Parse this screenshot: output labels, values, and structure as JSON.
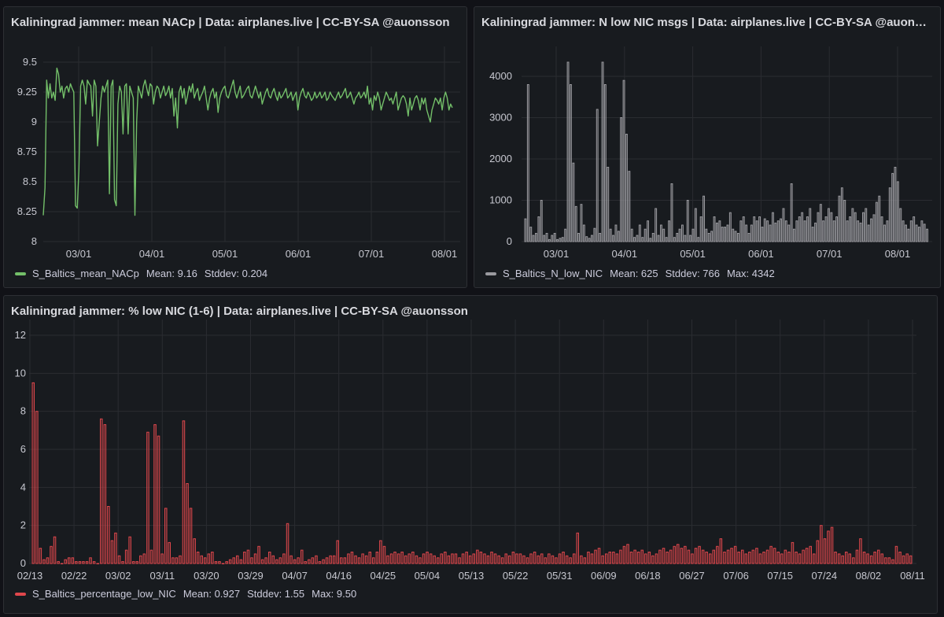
{
  "panels": [
    {
      "title": "Kaliningrad jammer: mean NACp | Data: airplanes.live | CC-BY-SA @auonsson",
      "legend": {
        "name": "S_Baltics_mean_NACp",
        "stats": [
          "Mean: 9.16",
          "Stddev: 0.204"
        ],
        "color": "#73bf69"
      }
    },
    {
      "title": "Kaliningrad jammer: N low NIC msgs | Data: airplanes.live | CC-BY-SA @auonsson",
      "legend": {
        "name": "S_Baltics_N_low_NIC",
        "stats": [
          "Mean: 625",
          "Stddev: 766",
          "Max: 4342"
        ],
        "color": "#9a9a9f"
      }
    },
    {
      "title": "Kaliningrad jammer: % low NIC (1-6) | Data: airplanes.live | CC-BY-SA @auonsson",
      "legend": {
        "name": "S_Baltics_percentage_low_NIC",
        "stats": [
          "Mean: 0.927",
          "Stddev: 1.55",
          "Max: 9.50"
        ],
        "color": "#e0474c"
      }
    }
  ],
  "chart_data": [
    {
      "type": "line",
      "series": [
        {
          "name": "S_Baltics_mean_NACp",
          "color": "#73bf69",
          "values": [
            8.22,
            8.45,
            9.35,
            9.2,
            9.32,
            9.2,
            9.25,
            9.18,
            9.45,
            9.4,
            9.25,
            9.3,
            9.2,
            9.28,
            9.3,
            9.25,
            9.32,
            9.28,
            9.25,
            8.3,
            8.28,
            8.6,
            9.3,
            9.35,
            9.3,
            9.15,
            9.35,
            9.32,
            9.3,
            9.05,
            9.35,
            9.3,
            8.8,
            9.0,
            9.2,
            9.3,
            9.25,
            9.3,
            9.35,
            8.4,
            9.3,
            9.35,
            8.35,
            8.3,
            9.15,
            9.3,
            9.25,
            8.9,
            9.3,
            9.32,
            8.9,
            9.3,
            9.25,
            9.2,
            8.22,
            9.0,
            9.3,
            9.25,
            9.2,
            9.3,
            9.35,
            9.28,
            9.22,
            9.32,
            9.3,
            9.15,
            9.25,
            9.3,
            9.28,
            9.2,
            9.25,
            9.3,
            9.22,
            9.25,
            9.3,
            9.2,
            9.28,
            9.05,
            9.2,
            8.95,
            9.25,
            9.3,
            9.2,
            9.28,
            9.15,
            9.22,
            9.3,
            9.25,
            9.32,
            9.2,
            9.25,
            9.28,
            9.18,
            9.22,
            9.25,
            9.3,
            9.2,
            9.1,
            9.2,
            9.25,
            9.28,
            9.2,
            9.25,
            9.08,
            9.2,
            9.25,
            9.28,
            9.3,
            9.22,
            9.2,
            9.25,
            9.3,
            9.35,
            9.25,
            9.2,
            9.25,
            9.3,
            9.2,
            9.22,
            9.25,
            9.28,
            9.3,
            9.22,
            9.2,
            9.25,
            9.3,
            9.25,
            9.2,
            9.25,
            9.15,
            9.2,
            9.25,
            9.28,
            9.22,
            9.2,
            9.25,
            9.28,
            9.22,
            9.18,
            9.25,
            9.2,
            9.22,
            9.25,
            9.28,
            9.2,
            9.22,
            9.25,
            9.18,
            9.22,
            9.25,
            9.1,
            9.2,
            9.25,
            9.28,
            9.22,
            9.2,
            9.25,
            9.22,
            9.18,
            9.2,
            9.25,
            9.2,
            9.22,
            9.25,
            9.2,
            9.22,
            9.25,
            9.18,
            9.2,
            9.25,
            9.22,
            9.2,
            9.18,
            9.22,
            9.25,
            9.2,
            9.22,
            9.25,
            9.28,
            9.2,
            9.22,
            9.25,
            9.2,
            9.15,
            9.2,
            9.22,
            9.25,
            9.2,
            9.22,
            9.25,
            9.2,
            9.3,
            9.15,
            9.2,
            9.1,
            9.22,
            9.18,
            9.25,
            9.2,
            9.1,
            9.15,
            9.2,
            9.25,
            9.22,
            9.18,
            9.2,
            9.15,
            9.2,
            9.25,
            9.1,
            9.15,
            9.2,
            9.22,
            9.2,
            9.15,
            9.05,
            9.2,
            9.1,
            9.15,
            9.2,
            9.22,
            9.18,
            9.1,
            9.2,
            9.15,
            9.2,
            9.1,
            9.05,
            9.0,
            9.1,
            9.15,
            9.2,
            9.18,
            9.15,
            9.2,
            9.1,
            9.2,
            9.25,
            9.2,
            9.1,
            9.15,
            9.12
          ]
        }
      ],
      "xticks": [
        "03/01",
        "04/01",
        "05/01",
        "06/01",
        "07/01",
        "08/01"
      ],
      "yticks": [
        "8",
        "8.25",
        "8.5",
        "8.75",
        "9",
        "9.25",
        "9.5"
      ],
      "ylim": [
        8,
        9.5
      ]
    },
    {
      "type": "bar",
      "series": [
        {
          "name": "S_Baltics_N_low_NIC",
          "color": "#9a9a9f",
          "values": [
            550,
            3800,
            350,
            150,
            200,
            600,
            1000,
            150,
            200,
            50,
            150,
            200,
            50,
            80,
            100,
            300,
            4342,
            3800,
            1900,
            850,
            200,
            900,
            400,
            120,
            80,
            150,
            320,
            3200,
            200,
            4342,
            3800,
            1800,
            300,
            150,
            400,
            250,
            3000,
            3900,
            2600,
            1700,
            300,
            100,
            150,
            400,
            100,
            300,
            500,
            80,
            200,
            800,
            150,
            400,
            300,
            100,
            500,
            1400,
            100,
            200,
            300,
            400,
            150,
            1000,
            150,
            300,
            800,
            100,
            600,
            1100,
            300,
            200,
            250,
            600,
            450,
            500,
            350,
            350,
            400,
            700,
            300,
            250,
            200,
            500,
            600,
            400,
            200,
            400,
            600,
            500,
            600,
            350,
            550,
            500,
            400,
            700,
            450,
            500,
            550,
            800,
            500,
            400,
            1400,
            300,
            500,
            600,
            700,
            500,
            600,
            800,
            350,
            450,
            700,
            900,
            500,
            600,
            800,
            700,
            500,
            600,
            1100,
            1300,
            1000,
            500,
            600,
            800,
            700,
            500,
            450,
            700,
            800,
            400,
            550,
            650,
            950,
            1100,
            600,
            400,
            500,
            1300,
            1650,
            1800,
            1450,
            800,
            500,
            400,
            300,
            500,
            600,
            400,
            350,
            500,
            420,
            300
          ]
        }
      ],
      "xticks": [
        "03/01",
        "04/01",
        "05/01",
        "06/01",
        "07/01",
        "08/01"
      ],
      "yticks": [
        "0",
        "1000",
        "2000",
        "3000",
        "4000"
      ],
      "ylim": [
        0,
        4342
      ]
    },
    {
      "type": "bar",
      "series": [
        {
          "name": "S_Baltics_percentage_low_NIC",
          "color": "#e0474c",
          "values": [
            9.5,
            8.0,
            0.8,
            0.2,
            0.3,
            0.9,
            1.4,
            0.1,
            0.0,
            0.2,
            0.3,
            0.3,
            0.1,
            0.1,
            0.1,
            0.1,
            0.3,
            0.1,
            0.0,
            7.6,
            7.3,
            3.0,
            1.2,
            1.6,
            0.4,
            0.1,
            0.7,
            1.4,
            0.1,
            0.1,
            0.4,
            0.5,
            6.9,
            0.7,
            7.3,
            6.7,
            0.5,
            2.9,
            1.1,
            0.3,
            0.3,
            0.4,
            7.5,
            4.2,
            2.9,
            1.3,
            0.6,
            0.4,
            0.3,
            0.5,
            0.6,
            0.1,
            0.1,
            0.0,
            0.1,
            0.2,
            0.3,
            0.4,
            0.2,
            0.6,
            0.7,
            0.3,
            0.5,
            0.9,
            0.2,
            0.3,
            0.6,
            0.4,
            0.2,
            0.3,
            0.5,
            2.1,
            0.4,
            0.2,
            0.3,
            0.7,
            0.1,
            0.2,
            0.3,
            0.4,
            0.1,
            0.2,
            0.3,
            0.4,
            0.4,
            1.2,
            0.3,
            0.3,
            0.5,
            0.6,
            0.4,
            0.3,
            0.5,
            0.4,
            0.6,
            0.3,
            0.6,
            1.2,
            0.9,
            0.4,
            0.5,
            0.6,
            0.5,
            0.6,
            0.4,
            0.5,
            0.6,
            0.4,
            0.3,
            0.5,
            0.6,
            0.5,
            0.4,
            0.3,
            0.5,
            0.6,
            0.4,
            0.5,
            0.5,
            0.3,
            0.5,
            0.6,
            0.4,
            0.5,
            0.7,
            0.6,
            0.5,
            0.4,
            0.6,
            0.5,
            0.4,
            0.3,
            0.5,
            0.4,
            0.6,
            0.5,
            0.5,
            0.4,
            0.3,
            0.5,
            0.6,
            0.4,
            0.5,
            0.3,
            0.5,
            0.4,
            0.3,
            0.5,
            0.6,
            0.4,
            0.3,
            0.5,
            1.6,
            0.4,
            0.3,
            0.6,
            0.5,
            0.7,
            0.8,
            0.4,
            0.5,
            0.6,
            0.6,
            0.5,
            0.7,
            0.9,
            1.0,
            0.6,
            0.7,
            0.6,
            0.7,
            0.5,
            0.6,
            0.4,
            0.5,
            0.7,
            0.8,
            0.6,
            0.7,
            0.9,
            1.0,
            0.8,
            0.9,
            0.7,
            0.5,
            0.8,
            0.9,
            0.7,
            0.6,
            0.5,
            0.7,
            0.9,
            1.3,
            0.6,
            0.7,
            0.8,
            0.9,
            0.6,
            0.7,
            0.5,
            0.6,
            0.7,
            0.8,
            0.5,
            0.6,
            0.7,
            0.9,
            0.8,
            0.6,
            0.5,
            0.7,
            0.6,
            1.1,
            0.6,
            0.5,
            0.7,
            0.8,
            0.9,
            0.5,
            1.2,
            2.0,
            1.3,
            1.7,
            1.9,
            0.6,
            0.5,
            0.4,
            0.6,
            0.5,
            0.3,
            0.7,
            1.3,
            0.6,
            0.5,
            0.4,
            0.6,
            0.7,
            0.5,
            0.3,
            0.3,
            0.2,
            0.9,
            0.6,
            0.4,
            0.5,
            0.4
          ]
        }
      ],
      "xticks": [
        "02/13",
        "02/22",
        "03/02",
        "03/11",
        "03/20",
        "03/29",
        "04/07",
        "04/16",
        "04/25",
        "05/04",
        "05/13",
        "05/22",
        "05/31",
        "06/09",
        "06/18",
        "06/27",
        "07/06",
        "07/15",
        "07/24",
        "08/02",
        "08/11"
      ],
      "yticks": [
        "0",
        "2",
        "4",
        "6",
        "8",
        "10",
        "12"
      ],
      "ylim": [
        0,
        12
      ]
    }
  ]
}
